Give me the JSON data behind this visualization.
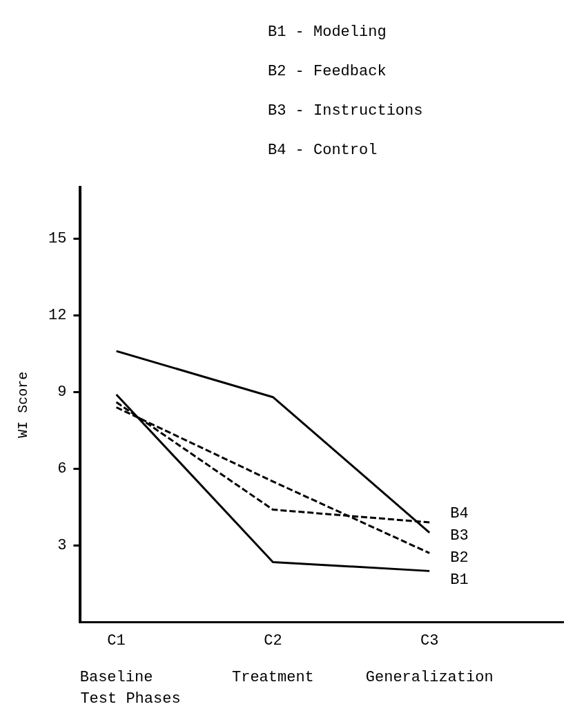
{
  "chart_data": {
    "type": "line",
    "xlabel": "Test Phases",
    "ylabel": "WI Score",
    "categories": [
      "C1\n\nBaseline",
      "C2\n\nTreatment",
      "C3\n\nGeneralization"
    ],
    "series": [
      {
        "name": "B1",
        "color": "#000000",
        "line_style": "solid",
        "values": [
          8.9,
          2.35,
          2.0
        ]
      },
      {
        "name": "B2",
        "color": "#000000",
        "line_style": "dashed",
        "values": [
          8.4,
          5.5,
          2.7
        ]
      },
      {
        "name": "B3",
        "color": "#000000",
        "line_style": "solid",
        "values": [
          10.6,
          8.8,
          3.5
        ]
      },
      {
        "name": "B4",
        "color": "#000000",
        "line_style": "dashed",
        "values": [
          8.6,
          4.4,
          3.9
        ]
      }
    ],
    "annotations": [
      "B1 - Modeling",
      "B2 - Feedback",
      "B3 - Instructions",
      "B4 - Control"
    ],
    "ylim": [
      0,
      17
    ],
    "yticks": [
      3,
      6,
      9,
      12,
      15
    ],
    "grid": false,
    "legend": false,
    "marker": "none"
  }
}
